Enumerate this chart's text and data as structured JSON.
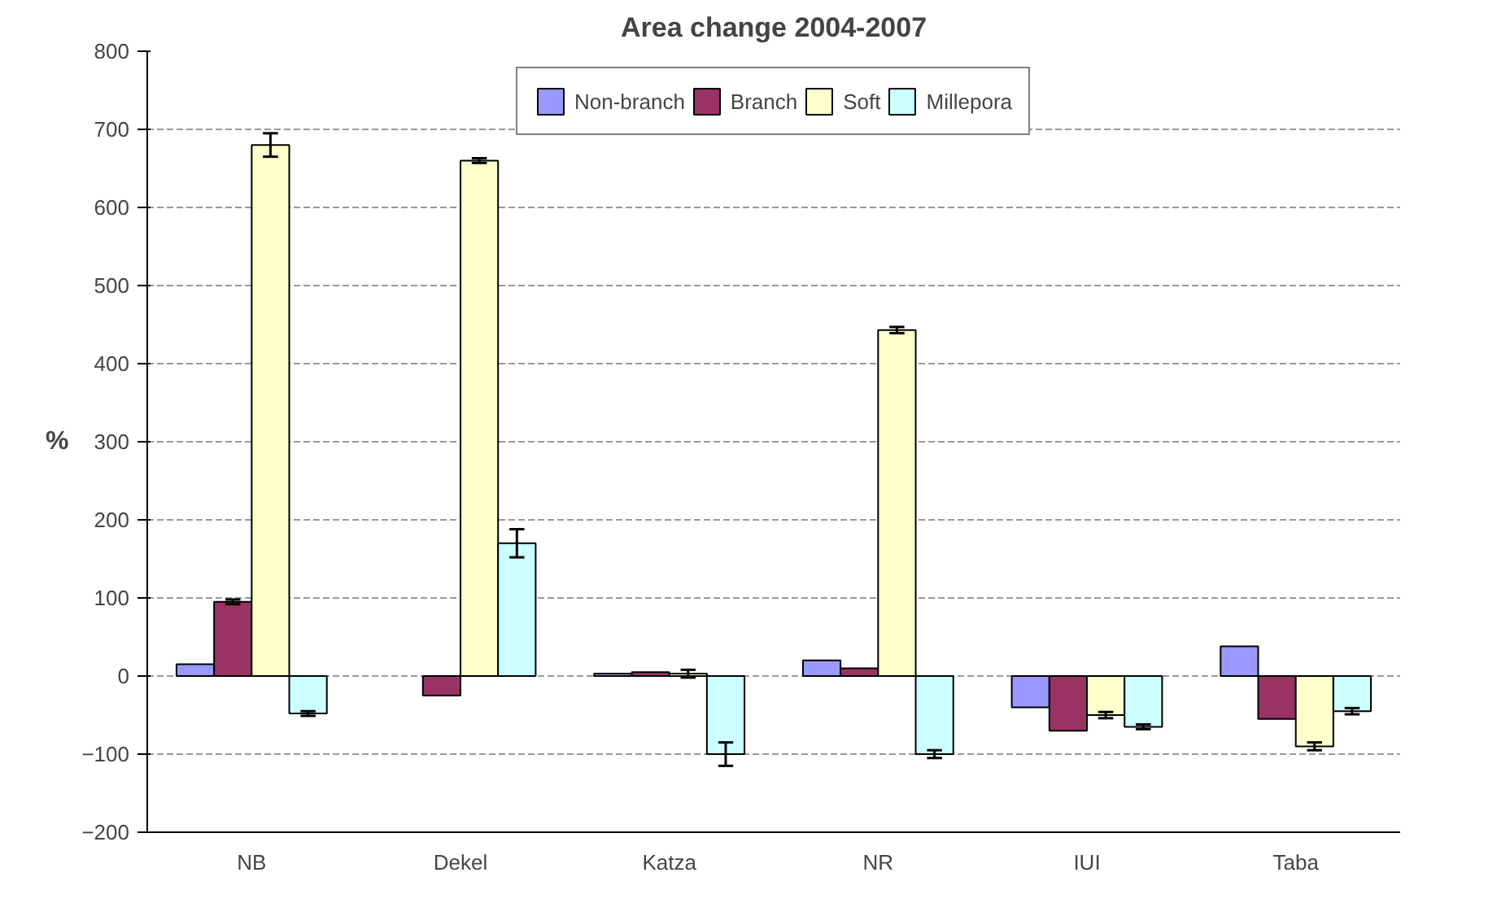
{
  "chart_data": {
    "type": "bar",
    "title": "Area change 2004-2007",
    "ylabel": "%",
    "categories": [
      "NB",
      "Dekel",
      "Katza",
      "NR",
      "IUI",
      "Taba"
    ],
    "series": [
      {
        "name": "Non-branch",
        "color": "#9999ff",
        "values": [
          15,
          null,
          3,
          20,
          -40,
          38
        ]
      },
      {
        "name": "Branch",
        "color": "#993366",
        "values": [
          95,
          -25,
          5,
          10,
          -70,
          -55
        ],
        "errors": [
          3,
          null,
          null,
          null,
          null,
          null
        ]
      },
      {
        "name": "Soft",
        "color": "#ffffcc",
        "values": [
          680,
          660,
          3,
          443,
          -50,
          -90
        ],
        "errors": [
          15,
          3,
          5,
          4,
          4,
          5
        ]
      },
      {
        "name": "Millepora",
        "color": "#ccffff",
        "values": [
          -48,
          170,
          -100,
          -100,
          -65,
          -45
        ],
        "errors": [
          3,
          18,
          15,
          5,
          3,
          4
        ]
      }
    ],
    "ylim": [
      -200,
      800
    ],
    "yticks": [
      -200,
      -100,
      0,
      100,
      200,
      300,
      400,
      500,
      600,
      700,
      800
    ],
    "grid": "y",
    "legend": "top"
  }
}
